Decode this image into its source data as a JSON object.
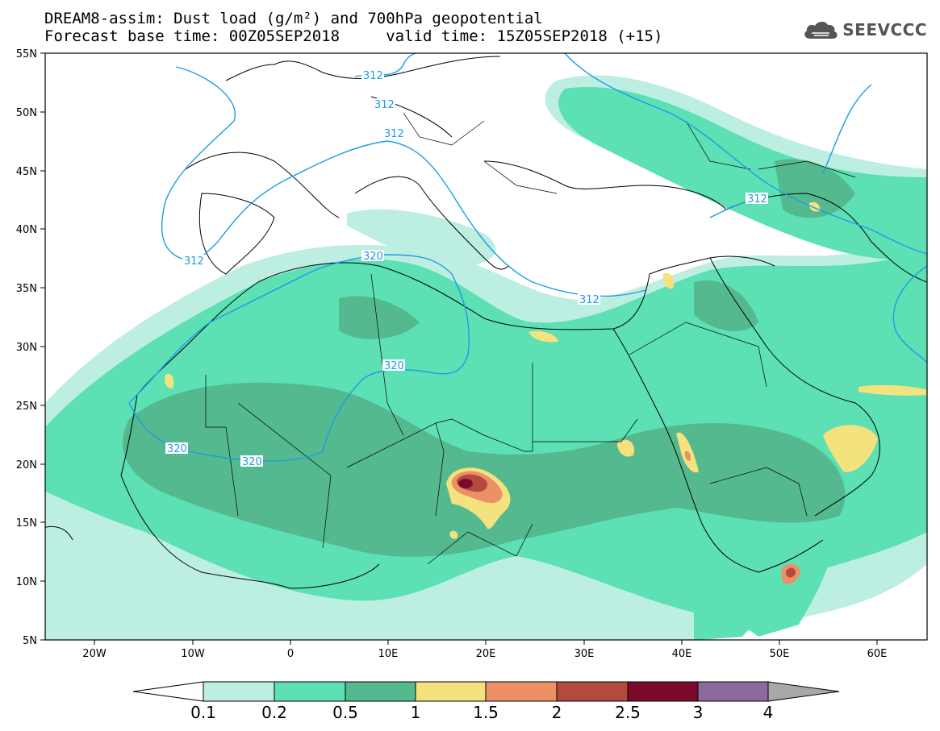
{
  "header": {
    "line1": "DREAM8-assim: Dust load (g/m²) and 700hPa geopotential",
    "line2": "Forecast base time: 00Z05SEP2018     valid time: 15Z05SEP2018 (+15)",
    "logo_text": "SEEVCCC",
    "logo_icon": "cloud-icon"
  },
  "map": {
    "lon_range": [
      -25,
      65
    ],
    "lat_range": [
      5,
      55
    ],
    "lon_ticks": [
      "20W",
      "10W",
      "0",
      "10E",
      "20E",
      "30E",
      "40E",
      "50E",
      "60E"
    ],
    "lat_ticks": [
      "55N",
      "50N",
      "45N",
      "40N",
      "35N",
      "30N",
      "25N",
      "20N",
      "15N",
      "10N",
      "5N"
    ],
    "contour_labels": [
      "312",
      "312",
      "312",
      "312",
      "312",
      "312",
      "320",
      "320",
      "320",
      "320"
    ]
  },
  "colorbar": {
    "levels": [
      "0.1",
      "0.2",
      "0.5",
      "1",
      "1.5",
      "2",
      "2.5",
      "3",
      "4"
    ],
    "colors": [
      "#bdeee2",
      "#5ce0b4",
      "#54b98e",
      "#f4e27e",
      "#ee9066",
      "#b24a3e",
      "#7b0a2a",
      "#8c6aa0"
    ],
    "low_color": "#ffffff",
    "high_color": "#a8a8a8"
  }
}
